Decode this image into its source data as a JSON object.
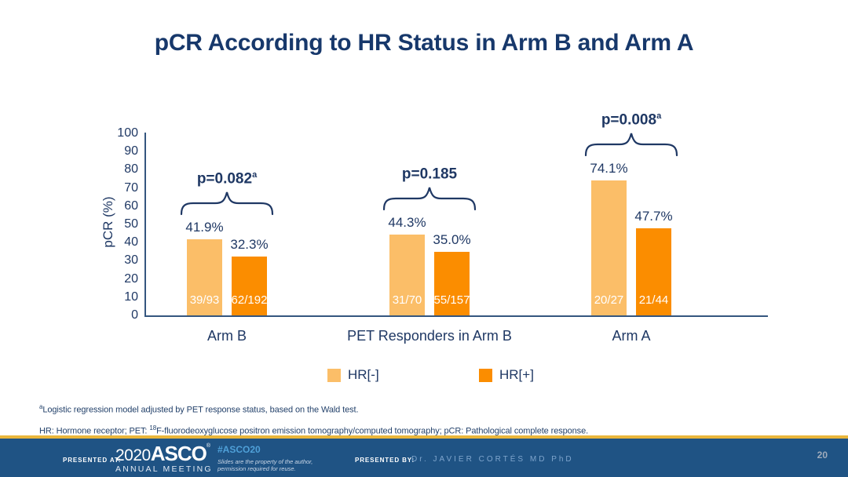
{
  "chart_data": {
    "type": "bar",
    "title": "pCR According to HR Status in Arm B and Arm A",
    "xlabel": "",
    "ylabel": "pCR (%)",
    "ylim": [
      0,
      100
    ],
    "yticks": [
      0,
      10,
      20,
      30,
      40,
      50,
      60,
      70,
      80,
      90,
      100
    ],
    "grid": false,
    "legend_position": "bottom",
    "categories": [
      "Arm B",
      "PET Responders in Arm B",
      "Arm A"
    ],
    "series": [
      {
        "name": "HR[-]",
        "color": "#FBBE68",
        "values": [
          41.9,
          44.3,
          74.1
        ],
        "value_labels": [
          "41.9%",
          "44.3%",
          "74.1%"
        ],
        "counts": [
          "39/93",
          "31/70",
          "20/27"
        ]
      },
      {
        "name": "HR[+]",
        "color": "#FB8D00",
        "values": [
          32.3,
          35.0,
          47.7
        ],
        "value_labels": [
          "32.3%",
          "35.0%",
          "47.7%"
        ],
        "counts": [
          "62/192",
          "55/157",
          "21/44"
        ]
      }
    ],
    "p_values": [
      {
        "text": "p=0.082",
        "superscript": "a"
      },
      {
        "text": "p=0.185",
        "superscript": ""
      },
      {
        "text": "p=0.008",
        "superscript": "a"
      }
    ]
  },
  "footnotes": {
    "line1": {
      "superscript": "a",
      "text": "Logistic regression model adjusted by PET response status, based on the Wald test."
    },
    "line2": {
      "prefix": "HR: Hormone receptor; PET: ",
      "superscript": "18",
      "text": "F-fluorodeoxyglucose positron emission tomography/computed tomography; pCR: Pathological complete response."
    }
  },
  "footer": {
    "presented_at_label": "PRESENTED AT:",
    "logo_year": "2020",
    "logo_name": "ASCO",
    "logo_reg": "®",
    "logo_sub": "ANNUAL MEETING",
    "hashtag": "#ASCO20",
    "reuse_note_line1": "Slides are the property of the author,",
    "reuse_note_line2": "permission required for reuse.",
    "presented_by_label": "PRESENTED BY:",
    "presenter": "Dr. JAVIER CORTÉS MD PhD",
    "page_number": "20"
  },
  "colors": {
    "navy_text": "#1F3864",
    "axis_line": "#35567F",
    "bar_hr_neg": "#FBBE68",
    "bar_hr_pos": "#FB8D00",
    "count_text": "#FFFFFF",
    "footer_bar": "#1F5384",
    "gold_line": "#E9B63B",
    "hashtag_blue": "#4FA0D8",
    "presenter_text": "#7FA5CD",
    "page_number_text": "#9FABBB"
  }
}
